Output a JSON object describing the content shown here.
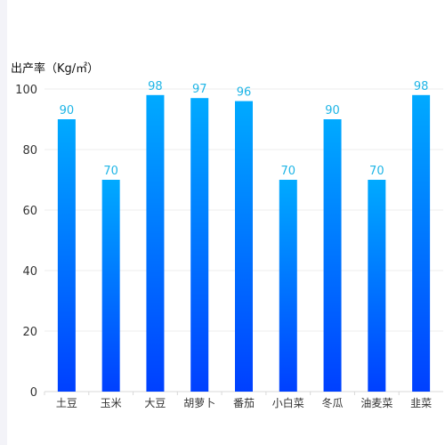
{
  "chart_data": {
    "type": "bar",
    "ylabel": "出产率（Kg/㎡）",
    "categories": [
      "土豆",
      "玉米",
      "大豆",
      "胡萝卜",
      "番茄",
      "小白菜",
      "冬瓜",
      "油麦菜",
      "韭菜"
    ],
    "values": [
      90,
      70,
      98,
      97,
      96,
      70,
      90,
      70,
      98
    ],
    "ylim": [
      0,
      100
    ],
    "yticks": [
      0,
      20,
      40,
      60,
      80,
      100
    ],
    "grid": true,
    "colors": {
      "bar_top": "#00aaff",
      "bar_bottom": "#0040ff",
      "value_label": "#1fb5e6",
      "axis_text": "#333333",
      "grid": "#ececec",
      "axis_line": "#d8d8d8"
    }
  }
}
